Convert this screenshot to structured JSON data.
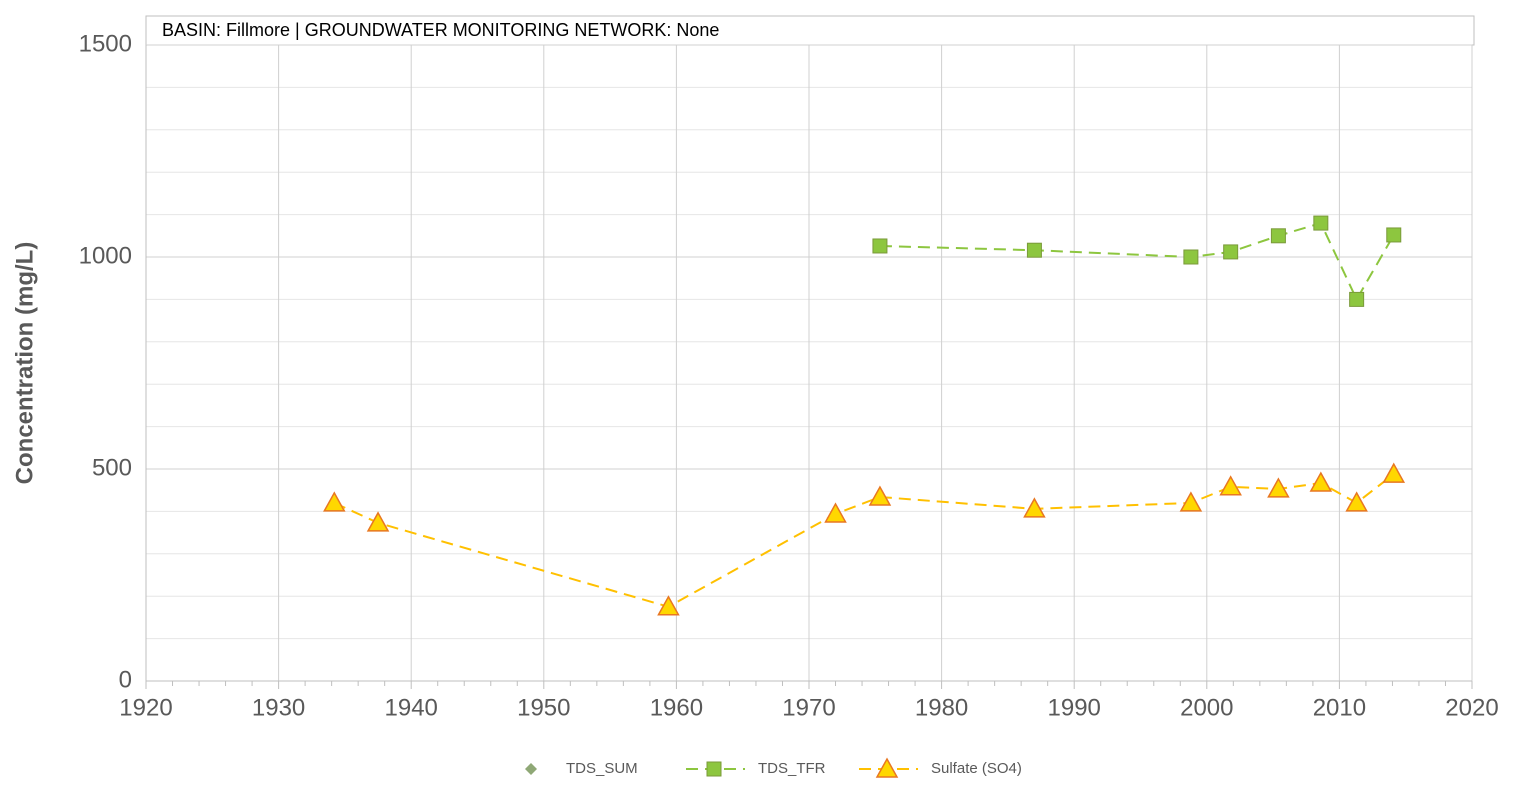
{
  "chart_data": {
    "type": "line",
    "title": "BASIN: Fillmore  |  GROUNDWATER MONITORING NETWORK: None",
    "y_label": "Concentration (mg/L)",
    "xlim": [
      1920,
      2020
    ],
    "xticks": [
      1920,
      1930,
      1940,
      1950,
      1960,
      1970,
      1980,
      1990,
      2000,
      2010,
      2020
    ],
    "xminorticks": [
      1922,
      1924,
      1926,
      1928,
      1932,
      1934,
      1936,
      1938,
      1942,
      1944,
      1946,
      1948,
      1952,
      1954,
      1956,
      1958,
      1962,
      1964,
      1966,
      1968,
      1972,
      1974,
      1976,
      1978,
      1982,
      1984,
      1986,
      1988,
      1992,
      1994,
      1996,
      1998,
      2002,
      2004,
      2006,
      2008,
      2012,
      2014,
      2016,
      2018
    ],
    "ylim": [
      0,
      1500
    ],
    "yticks": [
      0,
      500,
      1000,
      1500
    ],
    "yminorticks": [
      100,
      200,
      300,
      400,
      600,
      700,
      800,
      900,
      1100,
      1200,
      1300,
      1400
    ],
    "grid": true,
    "legend": "bottom",
    "series": [
      {
        "name": "TDS_SUM",
        "color": "#8fa876",
        "marker": "diamond",
        "x": [],
        "values": []
      },
      {
        "name": "TDS_TFR",
        "color": "#8dc63f",
        "marker": "square",
        "x": [
          1975.35,
          1987.0,
          1998.8,
          2001.8,
          2005.4,
          2008.6,
          2011.3,
          2014.1
        ],
        "values": [
          1026,
          1016,
          1000,
          1012,
          1050,
          1080,
          900,
          1052
        ]
      },
      {
        "name": "Sulfate (SO4)",
        "color": "#ffc000",
        "marker": "triangle",
        "x": [
          1934.2,
          1937.5,
          1959.4,
          1972.0,
          1975.35,
          1987.0,
          1998.8,
          2001.8,
          2005.4,
          2008.6,
          2011.3,
          2014.1
        ],
        "values": [
          420,
          373,
          175,
          394,
          434,
          406,
          420,
          458,
          453,
          467,
          420,
          488
        ]
      }
    ]
  }
}
